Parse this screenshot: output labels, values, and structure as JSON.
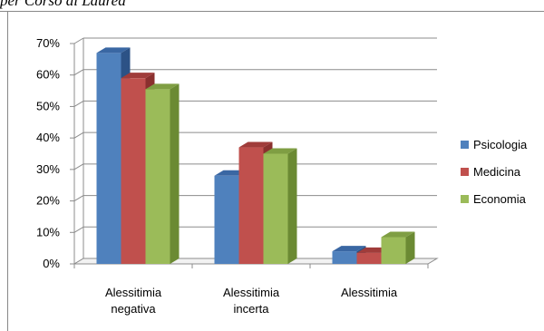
{
  "caption": "per Corso di Laurea",
  "chart_data": {
    "type": "bar",
    "style": "3d-clustered-column",
    "categories": [
      [
        "Alessitimia",
        "negativa"
      ],
      [
        "Alessitimia",
        "incerta"
      ],
      [
        "Alessitimia"
      ]
    ],
    "series": [
      {
        "name": "Psicologia",
        "values": [
          67,
          28,
          4
        ],
        "color": "#4f81bd",
        "top": "#3a67a3",
        "side": "#2c5286"
      },
      {
        "name": "Medicina",
        "values": [
          59,
          37,
          3.5
        ],
        "color": "#c0504d",
        "top": "#a03c3a",
        "side": "#8a302e"
      },
      {
        "name": "Economia",
        "values": [
          55.5,
          35,
          8.5
        ],
        "color": "#9bbb59",
        "top": "#7f9e43",
        "side": "#6b8a33"
      }
    ],
    "yticks": [
      "0%",
      "10%",
      "20%",
      "30%",
      "40%",
      "50%",
      "60%",
      "70%"
    ],
    "ylim": [
      0,
      70
    ],
    "grid": true,
    "legend": "right"
  }
}
